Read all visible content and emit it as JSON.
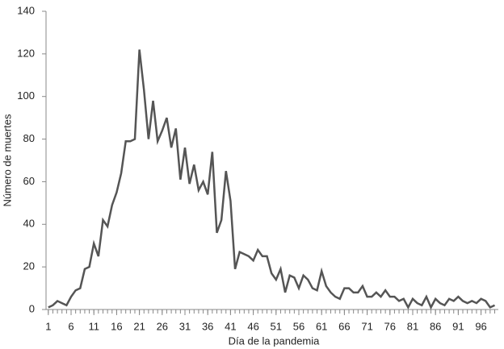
{
  "chart_data": {
    "type": "line",
    "x_label": "Día de la pandemia",
    "y_label": "Número de muertes",
    "x": [
      1,
      2,
      3,
      4,
      5,
      6,
      7,
      8,
      9,
      10,
      11,
      12,
      13,
      14,
      15,
      16,
      17,
      18,
      19,
      20,
      21,
      22,
      23,
      24,
      25,
      26,
      27,
      28,
      29,
      30,
      31,
      32,
      33,
      34,
      35,
      36,
      37,
      38,
      39,
      40,
      41,
      42,
      43,
      44,
      45,
      46,
      47,
      48,
      49,
      50,
      51,
      52,
      53,
      54,
      55,
      56,
      57,
      58,
      59,
      60,
      61,
      62,
      63,
      64,
      65,
      66,
      67,
      68,
      69,
      70,
      71,
      72,
      73,
      74,
      75,
      76,
      77,
      78,
      79,
      80,
      81,
      82,
      83,
      84,
      85,
      86,
      87,
      88,
      89,
      90,
      91,
      92,
      93,
      94,
      95,
      96,
      97,
      98,
      99
    ],
    "values": [
      1,
      2,
      4,
      3,
      2,
      6,
      9,
      10,
      19,
      20,
      31,
      25,
      42,
      39,
      49,
      55,
      64,
      79,
      79,
      80,
      122,
      103,
      80,
      98,
      79,
      84,
      90,
      76,
      85,
      61,
      76,
      59,
      68,
      56,
      60,
      54,
      74,
      36,
      42,
      65,
      51,
      19,
      27,
      26,
      25,
      23,
      28,
      25,
      25,
      17,
      14,
      19,
      8,
      16,
      15,
      10,
      16,
      14,
      10,
      9,
      18,
      11,
      8,
      6,
      5,
      10,
      10,
      8,
      8,
      11,
      6,
      6,
      8,
      6,
      9,
      6,
      6,
      4,
      5,
      1,
      5,
      3,
      2,
      6,
      1,
      5,
      3,
      2,
      5,
      4,
      6,
      4,
      3,
      4,
      3,
      5,
      4,
      1,
      2
    ],
    "color": "#555555",
    "xlim": [
      0.5,
      99.8
    ],
    "xticks": [
      1,
      6,
      11,
      16,
      21,
      26,
      31,
      36,
      41,
      46,
      51,
      56,
      61,
      66,
      71,
      76,
      81,
      86,
      91,
      96
    ],
    "ylim": [
      0,
      140
    ],
    "yticks": [
      0,
      20,
      40,
      60,
      80,
      100,
      120,
      140
    ]
  }
}
